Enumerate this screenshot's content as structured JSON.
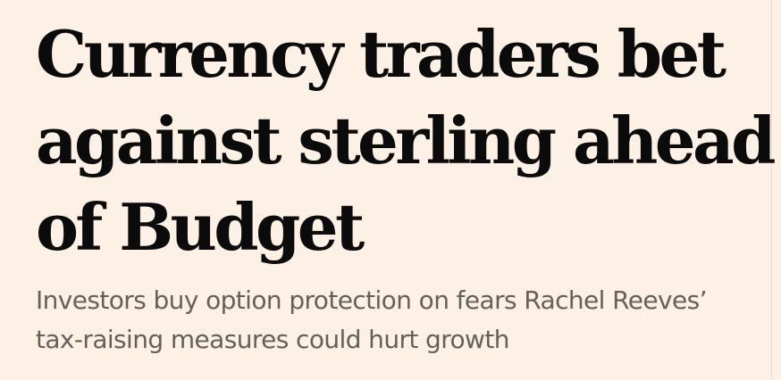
{
  "article": {
    "headline_lines": [
      "Currency traders bet",
      "against sterling ahead",
      "of Budget"
    ],
    "standfirst_lines": [
      "Investors buy option protection on fears Rachel Reeves’",
      "tax-raising measures could hurt growth"
    ]
  },
  "colors": {
    "background": "#fdf1e5",
    "headline": "#0b0b0b",
    "standfirst": "#66605b"
  }
}
